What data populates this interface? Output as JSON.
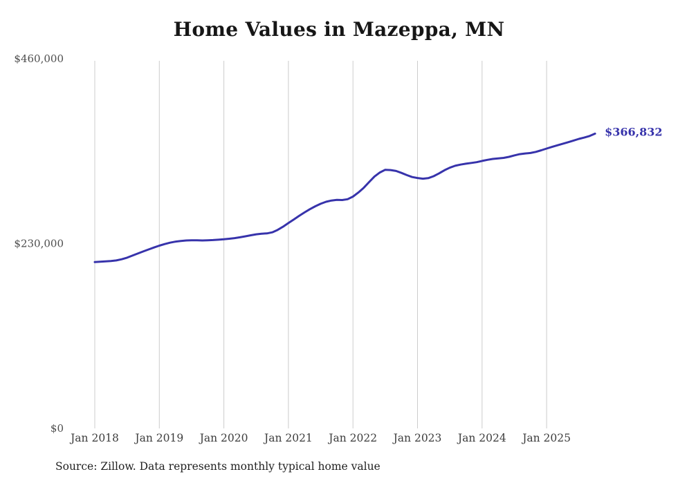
{
  "title": "Home Values in Mazeppa, MN",
  "source_note": "Source: Zillow. Data represents monthly typical home value",
  "end_label": "$366,832",
  "colors": {
    "line": "#3733ab",
    "end_label": "#3733ab",
    "grid": "#cccccc",
    "axis_text": "#4d4d4d",
    "title_text": "#161616"
  },
  "chart_data": {
    "type": "line",
    "title": "Home Values in Mazeppa, MN",
    "x_start": "2018-01",
    "x_interval": "month",
    "x_tick_labels": [
      "Jan 2018",
      "Jan 2019",
      "Jan 2020",
      "Jan 2021",
      "Jan 2022",
      "Jan 2023",
      "Jan 2024",
      "Jan 2025"
    ],
    "y_tick_labels": [
      "$0",
      "$230,000",
      "$460,000"
    ],
    "y_ticks": [
      0,
      230000,
      460000
    ],
    "ylim": [
      0,
      460000
    ],
    "grid": "vertical-only",
    "legend": "none",
    "final_value": 366832,
    "final_value_label": "$366,832",
    "values": [
      207000,
      207400,
      207800,
      208300,
      209000,
      210500,
      212500,
      215000,
      217600,
      220200,
      222700,
      225100,
      227400,
      229400,
      231100,
      232400,
      233300,
      233900,
      234100,
      234000,
      233900,
      234100,
      234400,
      234800,
      235300,
      236000,
      236800,
      237800,
      239000,
      240300,
      241500,
      242300,
      242600,
      244000,
      247000,
      251000,
      255500,
      260000,
      264500,
      268800,
      272800,
      276400,
      279500,
      282000,
      283600,
      284300,
      284200,
      285200,
      288500,
      293500,
      299500,
      306500,
      313500,
      318500,
      321800,
      321500,
      320400,
      318000,
      315200,
      312800,
      311600,
      310700,
      311400,
      313800,
      317400,
      321200,
      324400,
      326800,
      328300,
      329400,
      330300,
      331300,
      332800,
      334200,
      335300,
      336000,
      336600,
      337900,
      339700,
      341300,
      342100,
      342700,
      344100,
      346100,
      348200,
      350300,
      352300,
      354200,
      356100,
      358200,
      360300,
      361900,
      363900,
      366832
    ]
  }
}
